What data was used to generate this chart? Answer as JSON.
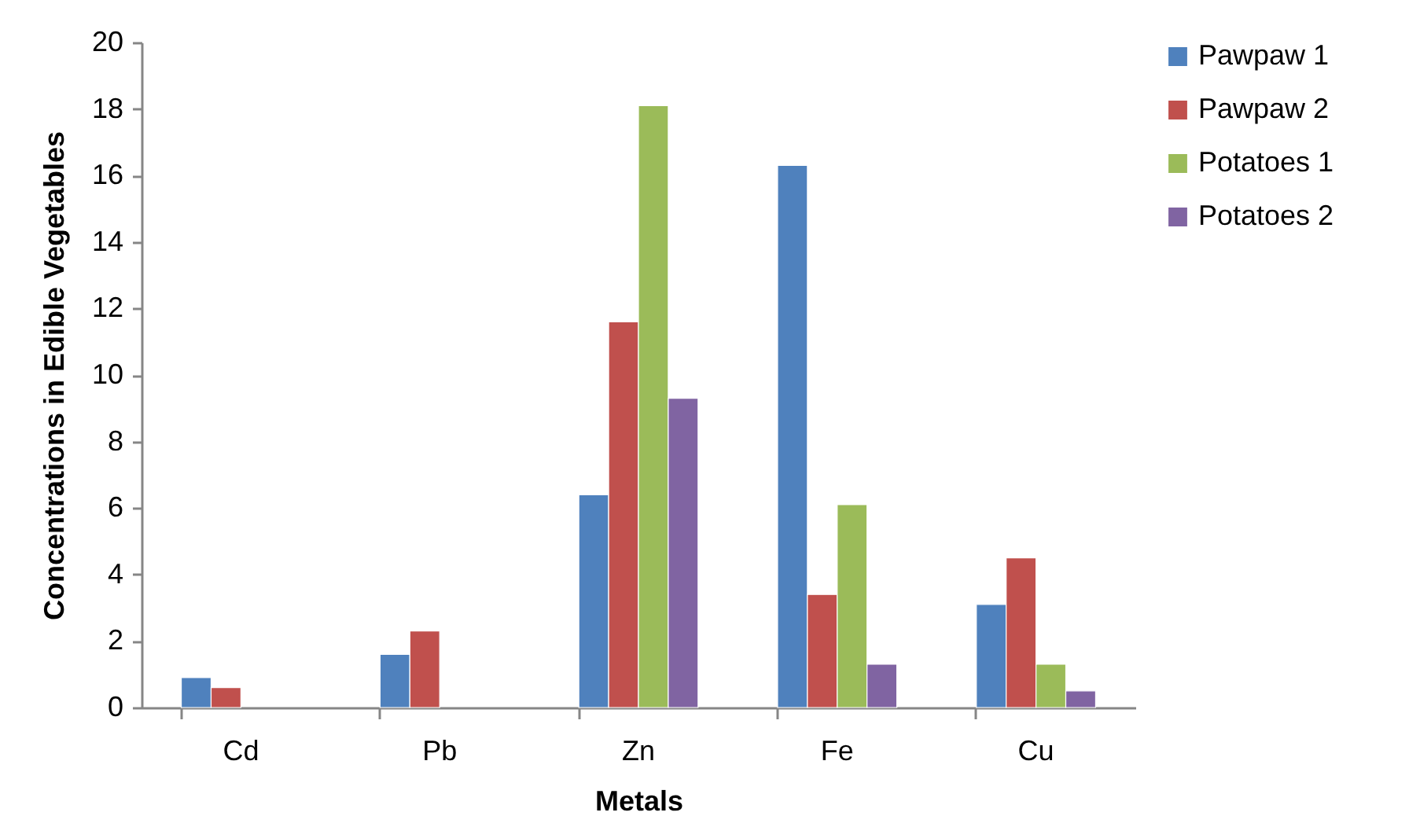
{
  "chart_data": {
    "type": "bar",
    "xlabel": "Metals",
    "ylabel": "Concentrations in Edible Vegetables",
    "categories": [
      "Cd",
      "Pb",
      "Zn",
      "Fe",
      "Cu"
    ],
    "series": [
      {
        "name": "Pawpaw 1",
        "color": "#4f81bd",
        "values": [
          0.9,
          1.6,
          6.4,
          16.3,
          3.1
        ]
      },
      {
        "name": "Pawpaw 2",
        "color": "#c0504d",
        "values": [
          0.6,
          2.3,
          11.6,
          3.4,
          4.5
        ]
      },
      {
        "name": "Potatoes 1",
        "color": "#9bbb59",
        "values": [
          null,
          null,
          18.1,
          6.1,
          1.3
        ]
      },
      {
        "name": "Potatoes 2",
        "color": "#8064a2",
        "values": [
          null,
          null,
          9.3,
          1.3,
          0.5
        ]
      }
    ],
    "ylim": [
      0,
      20
    ],
    "yticks": [
      0,
      2,
      4,
      6,
      8,
      10,
      12,
      14,
      16,
      18,
      20
    ],
    "grid": false,
    "legend": "right"
  }
}
